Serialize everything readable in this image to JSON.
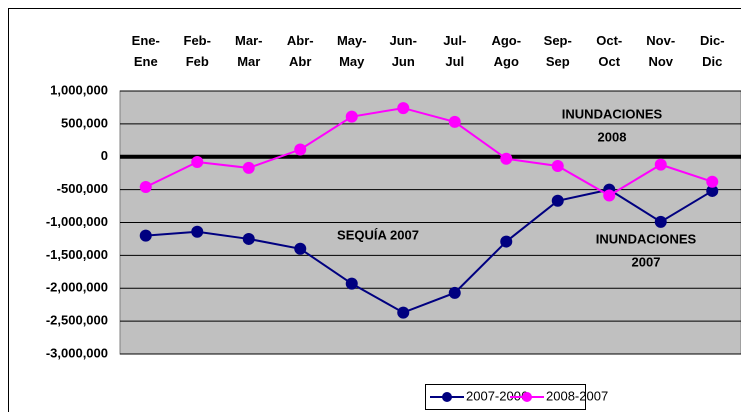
{
  "chart_data": {
    "type": "line",
    "categories": [
      "Ene-Ene",
      "Feb-Feb",
      "Mar-Mar",
      "Abr-Abr",
      "May-May",
      "Jun-Jun",
      "Jul-Jul",
      "Ago-Ago",
      "Sep-Sep",
      "Oct-Oct",
      "Nov-Nov",
      "Dic-Dic"
    ],
    "series": [
      {
        "name": "2007-2006",
        "color": "#000080",
        "values": [
          -1200000,
          -1140000,
          -1250000,
          -1400000,
          -1930000,
          -2370000,
          -2070000,
          -1290000,
          -670000,
          -500000,
          -990000,
          -520000
        ]
      },
      {
        "name": "2008-2007",
        "color": "#ff00ff",
        "values": [
          -460000,
          -80000,
          -170000,
          110000,
          610000,
          740000,
          530000,
          -30000,
          -140000,
          -590000,
          -120000,
          -380000
        ]
      }
    ],
    "ylim": [
      -3000000,
      1000000
    ],
    "yticks": [
      {
        "value": -3000000,
        "label": "-3,000,000"
      },
      {
        "value": -2500000,
        "label": "-2,500,000"
      },
      {
        "value": -2000000,
        "label": "-2,000,000"
      },
      {
        "value": -1500000,
        "label": "-1,500,000"
      },
      {
        "value": -1000000,
        "label": "-1,000,000"
      },
      {
        "value": -500000,
        "label": "-500,000"
      },
      {
        "value": 0,
        "label": "0"
      },
      {
        "value": 500000,
        "label": "500,000"
      },
      {
        "value": 1000000,
        "label": "1,000,000"
      }
    ],
    "grid": true,
    "legend": "bottom",
    "annotations": [
      "INUNDACIONES",
      "2008",
      "SEQUÍA 2007",
      "INUNDACIONES",
      "2007"
    ]
  }
}
